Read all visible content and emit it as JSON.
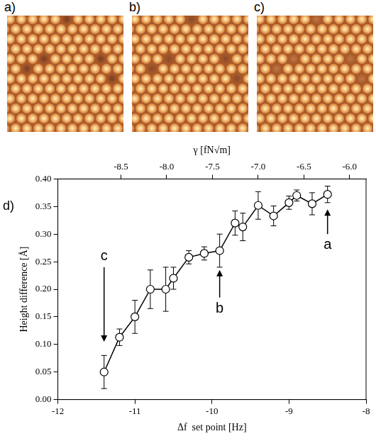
{
  "images": [
    {
      "label": "a)"
    },
    {
      "label": "b)"
    },
    {
      "label": "c)"
    }
  ],
  "chart_data": {
    "type": "line",
    "panel_label": "d)",
    "xlabel": "Δf  set point [Hz]",
    "ylabel": "Height difference [Å]",
    "x2label": "γ [fN√m]",
    "x": [
      -11.4,
      -11.2,
      -11.0,
      -10.8,
      -10.6,
      -10.5,
      -10.3,
      -10.1,
      -9.9,
      -9.7,
      -9.6,
      -9.4,
      -9.2,
      -9.0,
      -8.9,
      -8.7,
      -8.5
    ],
    "values": [
      0.05,
      0.113,
      0.15,
      0.2,
      0.2,
      0.22,
      0.258,
      0.265,
      0.27,
      0.32,
      0.313,
      0.352,
      0.333,
      0.357,
      0.37,
      0.355,
      0.372
    ],
    "errors": [
      0.03,
      0.015,
      0.03,
      0.035,
      0.04,
      0.02,
      0.012,
      0.012,
      0.03,
      0.022,
      0.025,
      0.025,
      0.018,
      0.012,
      0.01,
      0.02,
      0.015
    ],
    "color": "#000000",
    "marker": "circle",
    "xlim": [
      -12,
      -8
    ],
    "xticks": [
      -12,
      -11,
      -10,
      -9,
      -8
    ],
    "ylim": [
      0,
      0.4
    ],
    "yticks": [
      {
        "value": 0,
        "label": "0.00"
      },
      {
        "value": 0.05,
        "label": "0.05"
      },
      {
        "value": 0.1,
        "label": "0.10"
      },
      {
        "value": 0.15,
        "label": "0.15"
      },
      {
        "value": 0.2,
        "label": "0.20"
      },
      {
        "value": 0.25,
        "label": "0.25"
      },
      {
        "value": 0.3,
        "label": "0.30"
      },
      {
        "value": 0.35,
        "label": "0.35"
      },
      {
        "value": 0.4,
        "label": "0.40"
      }
    ],
    "x2lim": [
      -9.19,
      -5.82
    ],
    "x2ticks": [
      -8.5,
      {
        "value": -8,
        "label": "-8.0"
      },
      -7.5,
      {
        "value": -7,
        "label": "-7.0"
      },
      -6.5,
      {
        "value": -6,
        "label": "-6.0"
      }
    ],
    "grid": false,
    "annotations": [
      {
        "text": "a",
        "x": -8.5,
        "y": 0.28,
        "arrow": [
          0.3,
          0.345
        ]
      },
      {
        "text": "b",
        "x": -9.9,
        "y": 0.165,
        "arrow": [
          0.185,
          0.235
        ]
      },
      {
        "text": "c",
        "x": -11.4,
        "y": 0.26,
        "arrow": [
          0.24,
          0.105
        ]
      }
    ]
  }
}
